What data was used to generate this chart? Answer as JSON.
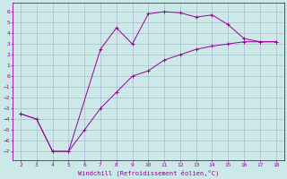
{
  "xlabel": "Windchill (Refroidissement éolien,°C)",
  "x_data": [
    2,
    3,
    4,
    5,
    6,
    7,
    8,
    9,
    10,
    11,
    12,
    13,
    14,
    15,
    16,
    17,
    18
  ],
  "y_upper": [
    -3.5,
    -4,
    -7,
    -7,
    null,
    2.5,
    4.5,
    3.0,
    5.8,
    6.0,
    5.9,
    5.5,
    5.7,
    4.8,
    3.5,
    3.2,
    3.2
  ],
  "y_lower": [
    -3.5,
    -4,
    -7,
    -7,
    -5,
    -3,
    -1.5,
    0,
    0.5,
    1.5,
    2,
    2.5,
    2.8,
    3.0,
    3.2,
    3.2,
    3.2
  ],
  "line_color": "#990099",
  "bg_color": "#cce8e8",
  "grid_color": "#aaaacc",
  "xlim": [
    1.5,
    18.5
  ],
  "ylim": [
    -7.8,
    6.8
  ],
  "xticks": [
    2,
    3,
    4,
    5,
    6,
    7,
    8,
    9,
    10,
    11,
    12,
    13,
    14,
    15,
    16,
    17,
    18
  ],
  "yticks": [
    -7,
    -6,
    -5,
    -4,
    -3,
    -2,
    -1,
    0,
    1,
    2,
    3,
    4,
    5,
    6
  ],
  "tick_fontsize": 4.5,
  "xlabel_fontsize": 5.0,
  "lw": 0.7,
  "marker_size": 2.5
}
